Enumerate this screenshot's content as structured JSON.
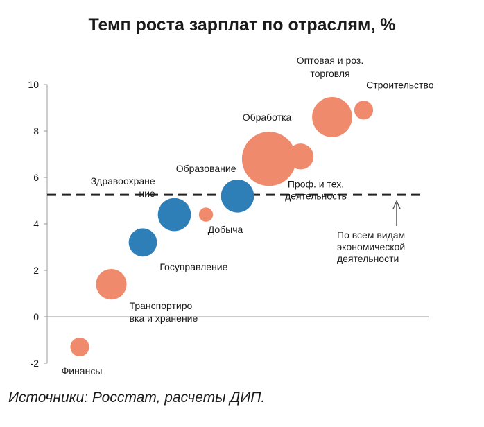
{
  "chart_data": {
    "type": "scatter",
    "title": "Темп роста зарплат по отраслям, %",
    "xlabel": "",
    "ylabel": "",
    "ylim": [
      -2,
      10
    ],
    "yticks": [
      -2,
      0,
      2,
      4,
      6,
      8,
      10
    ],
    "xlim": [
      0,
      12
    ],
    "reference_line": {
      "value": 5.25,
      "style": "dashed",
      "label": [
        "По всем видам",
        "экономической",
        "деятельности"
      ]
    },
    "colors": {
      "orange": "#f08a6c",
      "blue": "#2e7fb8",
      "axis": "#999999",
      "dash": "#222222",
      "text": "#1a1a1a"
    },
    "points": [
      {
        "name": "Финансы",
        "label": [
          "Финансы"
        ],
        "x": 1.0,
        "y": -1.3,
        "size": 0.8,
        "color": "orange",
        "label_pos": "below"
      },
      {
        "name": "Транспортировка и хранение",
        "label": [
          "Транспортиро",
          "вка и хранение"
        ],
        "x": 2.0,
        "y": 1.4,
        "size": 1.3,
        "color": "orange",
        "label_pos": "right-below"
      },
      {
        "name": "Госуправление",
        "label": [
          "Госуправление"
        ],
        "x": 3.0,
        "y": 3.2,
        "size": 1.2,
        "color": "blue",
        "label_pos": "right-below"
      },
      {
        "name": "Здравоохранение",
        "label": [
          "Здравоохране",
          "ние"
        ],
        "x": 4.0,
        "y": 4.4,
        "size": 1.4,
        "color": "blue",
        "label_pos": "left-above"
      },
      {
        "name": "Добыча",
        "label": [
          "Добыча"
        ],
        "x": 5.0,
        "y": 4.4,
        "size": 0.6,
        "color": "orange",
        "label_pos": "below"
      },
      {
        "name": "Образование",
        "label": [
          "Образование"
        ],
        "x": 6.0,
        "y": 5.2,
        "size": 1.4,
        "color": "blue",
        "label_pos": "above-left"
      },
      {
        "name": "Обработка",
        "label": [
          "Обработка"
        ],
        "x": 7.0,
        "y": 6.8,
        "size": 2.3,
        "color": "orange",
        "label_pos": "above"
      },
      {
        "name": "Проф. и тех. деятельность",
        "label": [
          "Проф. и тех.",
          "деятельность"
        ],
        "x": 8.0,
        "y": 6.9,
        "size": 1.1,
        "color": "orange",
        "label_pos": "below"
      },
      {
        "name": "Оптовая и роз. торговля",
        "label": [
          "Оптовая и роз.",
          "торговля"
        ],
        "x": 9.0,
        "y": 8.6,
        "size": 1.7,
        "color": "orange",
        "label_pos": "above"
      },
      {
        "name": "Строительство",
        "label": [
          "Строительство"
        ],
        "x": 10.0,
        "y": 8.9,
        "size": 0.8,
        "color": "orange",
        "label_pos": "above-right"
      }
    ]
  },
  "footer": {
    "source": "Источники: Росстат, расчеты ДИП."
  }
}
